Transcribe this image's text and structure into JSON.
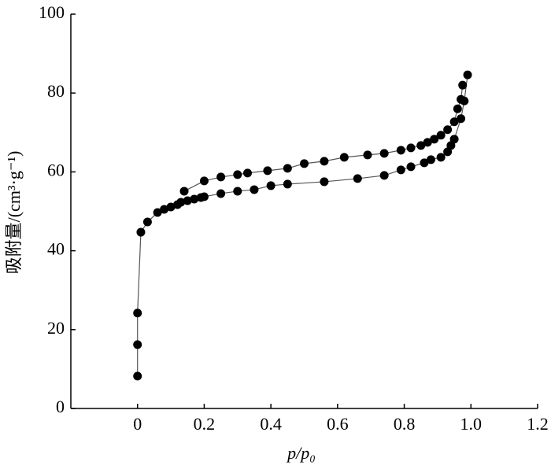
{
  "chart_data": {
    "type": "line",
    "x_label": "p/p₀",
    "y_label": "吸附量/(cm³·g⁻¹)",
    "xlim": [
      -0.2,
      1.2
    ],
    "xticks": [
      0,
      0.2,
      0.4,
      0.6,
      0.8,
      {
        "value": 1,
        "label": "1.0"
      },
      1.2
    ],
    "ylim": [
      0,
      100
    ],
    "yticks": [
      0,
      20,
      40,
      60,
      80,
      100
    ],
    "series": [
      {
        "color": "#000000",
        "x": [
          0.0,
          0.0,
          0.0,
          0.01,
          0.03,
          0.06,
          0.08,
          0.1,
          0.12,
          0.13,
          0.15,
          0.17,
          0.19,
          0.2,
          0.25,
          0.3,
          0.35,
          0.4,
          0.45,
          0.56,
          0.66,
          0.74,
          0.79,
          0.82,
          0.86,
          0.88,
          0.91,
          0.93,
          0.94,
          0.95,
          0.97,
          0.98,
          0.99
        ],
        "values": [
          8.2,
          16.2,
          24.2,
          44.7,
          47.3,
          49.7,
          50.5,
          51.1,
          51.7,
          52.3,
          52.7,
          53.1,
          53.5,
          53.7,
          54.5,
          55.1,
          55.5,
          56.5,
          56.9,
          57.5,
          58.3,
          59.1,
          60.5,
          61.3,
          62.3,
          63.1,
          63.7,
          65.1,
          66.7,
          68.3,
          73.5,
          78.0,
          84.6
        ]
      },
      {
        "color": "#000000",
        "x": [
          0.975,
          0.97,
          0.96,
          0.95,
          0.93,
          0.91,
          0.89,
          0.87,
          0.85,
          0.82,
          0.79,
          0.74,
          0.69,
          0.62,
          0.56,
          0.5,
          0.45,
          0.39,
          0.33,
          0.3,
          0.25,
          0.2,
          0.14
        ],
        "values": [
          82.0,
          78.4,
          76.0,
          72.7,
          70.7,
          69.3,
          68.3,
          67.5,
          66.7,
          66.1,
          65.5,
          64.7,
          64.3,
          63.7,
          62.7,
          62.1,
          60.9,
          60.3,
          59.7,
          59.3,
          58.7,
          57.7,
          55.1
        ]
      }
    ]
  }
}
